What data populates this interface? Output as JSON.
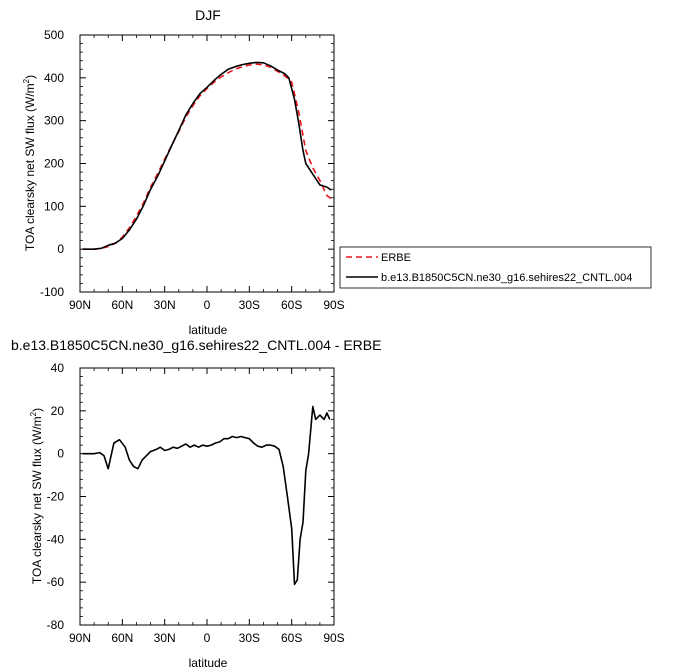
{
  "chart_data": [
    {
      "type": "line",
      "title": "DJF",
      "xlabel": "latitude",
      "ylabel": "TOA clearsky net SW flux (W/m²)",
      "ylabel_main": "TOA clearsky net SW flux (W/m",
      "ylabel_sup": "2",
      "ylabel_close": ")",
      "xlim": [
        -90,
        90
      ],
      "ylim": [
        -100,
        500
      ],
      "xticks": [
        -90,
        -60,
        -30,
        0,
        30,
        60,
        90
      ],
      "xtick_labels": [
        "90N",
        "60N",
        "30N",
        "0",
        "30S",
        "60S",
        "90S"
      ],
      "yticks": [
        -100,
        0,
        100,
        200,
        300,
        400,
        500
      ],
      "ytick_labels": [
        "-100",
        "0",
        "100",
        "200",
        "300",
        "400",
        "500"
      ],
      "legend_position": "right",
      "series": [
        {
          "name": "ERBE",
          "color": "#e8141b",
          "dash": "dashed",
          "x": [
            -88,
            -84,
            -80,
            -75,
            -70,
            -65,
            -60,
            -55,
            -50,
            -45,
            -40,
            -35,
            -30,
            -25,
            -20,
            -15,
            -10,
            -5,
            0,
            5,
            10,
            15,
            20,
            25,
            30,
            35,
            40,
            45,
            50,
            55,
            60,
            65,
            70,
            75,
            80,
            85,
            88
          ],
          "y": [
            0,
            0,
            0,
            2,
            6,
            14,
            28,
            50,
            77,
            108,
            145,
            176,
            210,
            243,
            275,
            308,
            335,
            358,
            375,
            390,
            402,
            412,
            420,
            426,
            430,
            432,
            430,
            425,
            415,
            405,
            390,
            320,
            230,
            190,
            160,
            125,
            118
          ]
        },
        {
          "name": "b.e13.B1850C5CN.ne30_g16.sehires22_CNTL.004",
          "color": "#000000",
          "dash": "solid",
          "x": [
            -88,
            -84,
            -80,
            -75,
            -70,
            -65,
            -60,
            -55,
            -50,
            -45,
            -40,
            -35,
            -30,
            -25,
            -20,
            -15,
            -10,
            -5,
            0,
            5,
            10,
            15,
            20,
            25,
            30,
            35,
            40,
            45,
            50,
            55,
            58,
            62,
            65,
            68,
            70,
            75,
            80,
            85,
            88
          ],
          "y": [
            0,
            0,
            0,
            2,
            9,
            14,
            25,
            45,
            70,
            102,
            140,
            170,
            206,
            242,
            277,
            313,
            340,
            363,
            378,
            394,
            408,
            420,
            426,
            431,
            434,
            436,
            435,
            428,
            418,
            410,
            400,
            350,
            295,
            230,
            200,
            175,
            150,
            145,
            138
          ]
        }
      ]
    },
    {
      "type": "line",
      "title": "b.e13.B1850C5CN.ne30_g16.sehires22_CNTL.004 - ERBE",
      "xlabel": "latitude",
      "ylabel": "TOA clearsky net SW flux (W/m²)",
      "ylabel_main": "TOA clearsky net SW flux (W/m",
      "ylabel_sup": "2",
      "ylabel_close": ")",
      "xlim": [
        -90,
        90
      ],
      "ylim": [
        -80,
        40
      ],
      "xticks": [
        -90,
        -60,
        -30,
        0,
        30,
        60,
        90
      ],
      "xtick_labels": [
        "90N",
        "60N",
        "30N",
        "0",
        "30S",
        "60S",
        "90S"
      ],
      "yticks": [
        -80,
        -60,
        -40,
        -20,
        0,
        20,
        40
      ],
      "ytick_labels": [
        "-80",
        "-60",
        "-40",
        "-20",
        "0",
        "20",
        "40"
      ],
      "series": [
        {
          "color": "#000000",
          "dash": "solid",
          "x": [
            -88,
            -84,
            -80,
            -76,
            -73,
            -70,
            -66,
            -62,
            -58,
            -55,
            -52,
            -49,
            -46,
            -43,
            -40,
            -38,
            -36,
            -33,
            -30,
            -27,
            -24,
            -21,
            -18,
            -15,
            -12,
            -9,
            -6,
            -3,
            0,
            3,
            6,
            9,
            12,
            15,
            18,
            21,
            24,
            27,
            30,
            33,
            36,
            39,
            42,
            45,
            48,
            51,
            54,
            57,
            60,
            62,
            64,
            66,
            68,
            70,
            72,
            75,
            77,
            80,
            83,
            85,
            87
          ],
          "y": [
            0,
            0,
            0,
            0.5,
            -1,
            -7,
            5,
            6.5,
            3,
            -3,
            -6,
            -7,
            -3,
            -1,
            1,
            1.5,
            2,
            3,
            1.5,
            2,
            3,
            2.5,
            3.5,
            4.5,
            3,
            4,
            3,
            4,
            3.5,
            4,
            5,
            5.5,
            7,
            7,
            8,
            7.5,
            8,
            7.5,
            7,
            5,
            3.5,
            3,
            4,
            4,
            3.5,
            2,
            -6,
            -20,
            -35,
            -61,
            -59,
            -40,
            -32,
            -8,
            0,
            22,
            16,
            18,
            16,
            19,
            16
          ]
        }
      ]
    }
  ]
}
